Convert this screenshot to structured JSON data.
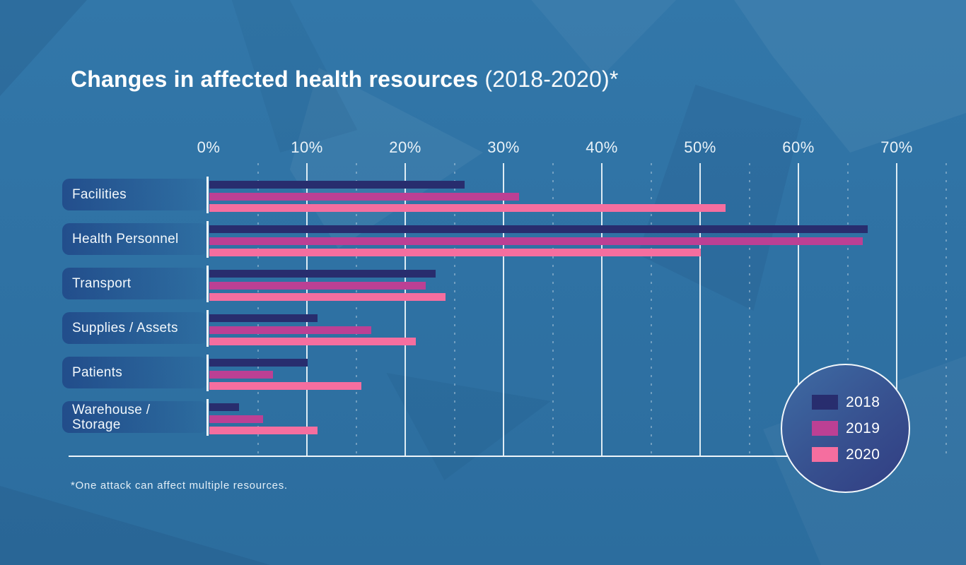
{
  "title": {
    "main": "Changes in affected health resources",
    "suffix": "(2018-2020)*"
  },
  "footnote": "*One attack can affect multiple resources.",
  "colors": {
    "background": "#2f72a4",
    "gridline": "#eef5fa",
    "series_2018": "#282d6e",
    "series_2019": "#bc4094",
    "series_2020": "#f56e9f"
  },
  "chart_data": {
    "type": "bar",
    "orientation": "horizontal",
    "title": "Changes in affected health resources (2018-2020)*",
    "xlabel": "",
    "ylabel": "",
    "xlim": [
      0,
      70
    ],
    "x_tick_step": 10,
    "x_ticks": [
      "0%",
      "10%",
      "20%",
      "30%",
      "40%",
      "50%",
      "60%",
      "70%"
    ],
    "minor_gridlines_percent": [
      5,
      15,
      25,
      35,
      45,
      55,
      65,
      75
    ],
    "grid": "on",
    "legend_position": "bottom-right-circle",
    "categories": [
      "Facilities",
      "Health Personnel",
      "Transport",
      "Supplies / Assets",
      "Patients",
      "Warehouse / Storage"
    ],
    "series": [
      {
        "name": "2018",
        "color": "#282d6e",
        "values": [
          26,
          67,
          23,
          11,
          10,
          3
        ]
      },
      {
        "name": "2019",
        "color": "#bc4094",
        "values": [
          31.5,
          66.5,
          22,
          16.5,
          6.5,
          5.5
        ]
      },
      {
        "name": "2020",
        "color": "#f56e9f",
        "values": [
          52.5,
          50,
          24,
          21,
          15.5,
          11
        ]
      }
    ],
    "footnote": "*One attack can affect multiple resources."
  }
}
